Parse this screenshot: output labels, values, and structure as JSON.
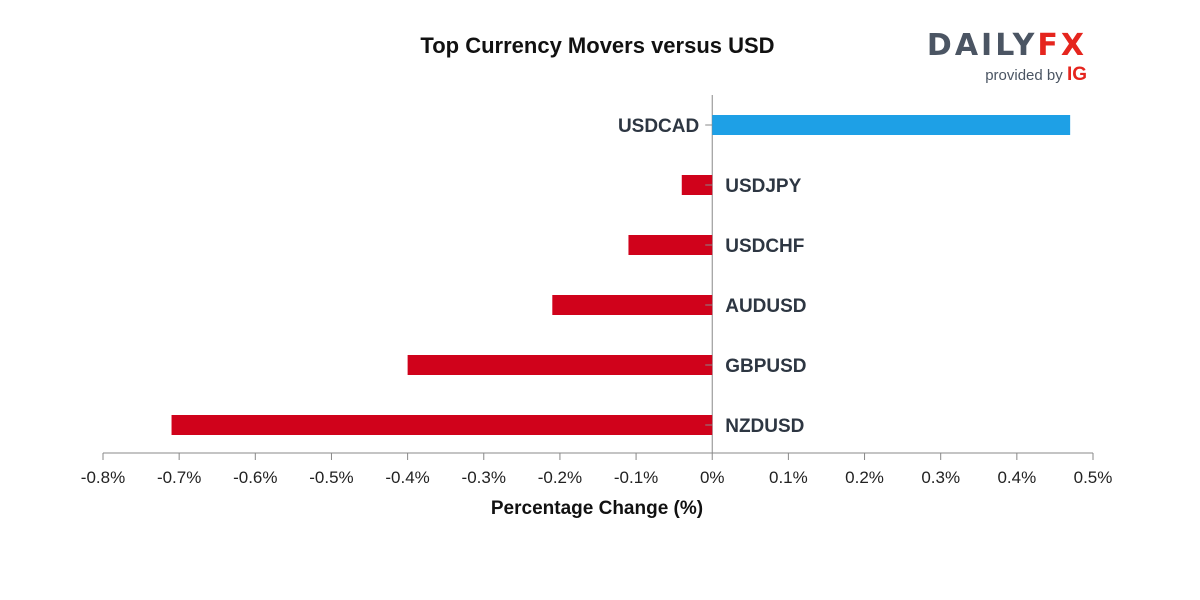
{
  "chart_data": {
    "type": "bar",
    "orientation": "horizontal",
    "title": "Top Currency Movers versus USD",
    "xlabel": "Percentage Change (%)",
    "ylabel": "",
    "categories": [
      "USDCAD",
      "USDJPY",
      "USDCHF",
      "AUDUSD",
      "GBPUSD",
      "NZDUSD"
    ],
    "values": [
      0.47,
      -0.04,
      -0.11,
      -0.21,
      -0.4,
      -0.71
    ],
    "xlim": [
      -0.8,
      0.5
    ],
    "xticks": [
      -0.8,
      -0.7,
      -0.6,
      -0.5,
      -0.4,
      -0.3,
      -0.2,
      -0.1,
      0,
      0.1,
      0.2,
      0.3,
      0.4,
      0.5
    ],
    "xtick_labels": [
      "-0.8%",
      "-0.7%",
      "-0.6%",
      "-0.5%",
      "-0.4%",
      "-0.3%",
      "-0.2%",
      "-0.1%",
      "0%",
      "0.1%",
      "0.2%",
      "0.3%",
      "0.4%",
      "0.5%"
    ],
    "colors": {
      "positive": "#1ea0e6",
      "negative": "#d0021b",
      "axis": "#888888"
    },
    "grid": false,
    "legend": "none"
  },
  "logo": {
    "brand_a": "DAILY",
    "brand_b": "FX",
    "provided_by": "provided by",
    "sub_brand": "IG"
  }
}
